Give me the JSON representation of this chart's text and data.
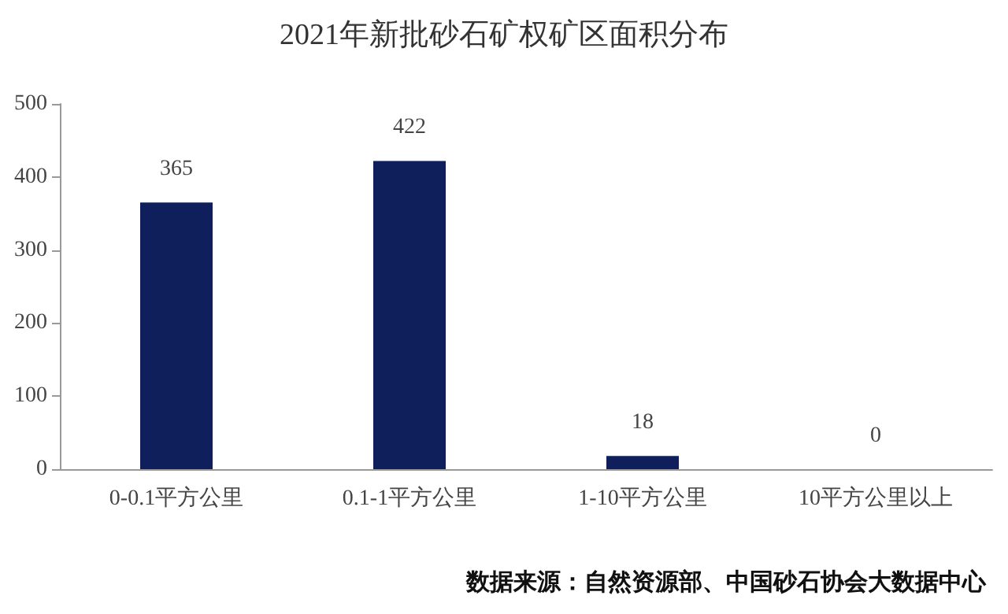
{
  "chart_data": {
    "type": "bar",
    "title": "2021年新批砂石矿权矿区面积分布",
    "categories": [
      "0-0.1平方公里",
      "0.1-1平方公里",
      "1-10平方公里",
      "10平方公里以上"
    ],
    "values": [
      365,
      422,
      18,
      0
    ],
    "color": "#0f1f5c",
    "ylim": [
      0,
      500
    ],
    "yticks": [
      0,
      100,
      200,
      300,
      400,
      500
    ],
    "grid": false,
    "data_labels": true,
    "annotations": [
      "数据来源：自然资源部、中国砂石协会大数据中心"
    ]
  }
}
